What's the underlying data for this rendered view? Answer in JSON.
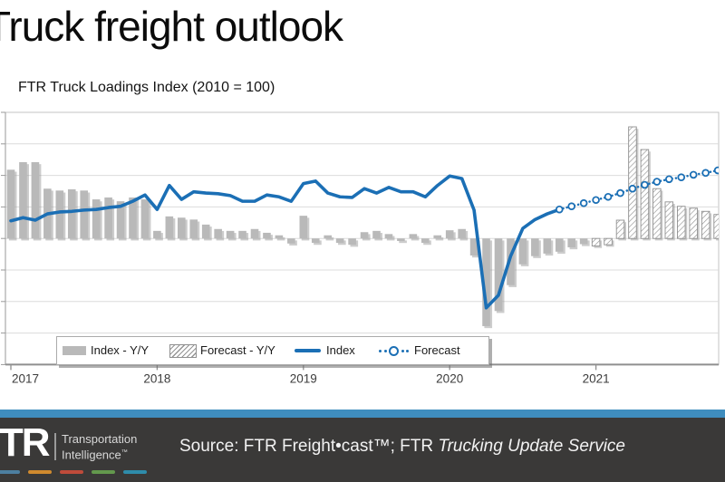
{
  "slide": {
    "title": "Truck freight outlook",
    "chart_subtitle": "FTR Truck Loadings Index (2010 = 100)"
  },
  "legend": {
    "items": [
      {
        "label": "Index - Y/Y",
        "swatch": "gray-bar"
      },
      {
        "label": "Forecast - Y/Y",
        "swatch": "hatched-bar"
      },
      {
        "label": "Index",
        "swatch": "solid-blue-line"
      },
      {
        "label": "Forecast",
        "swatch": "dotted-line-circle-marker"
      }
    ]
  },
  "footer": {
    "logo_text": "FTR",
    "logo_tagline_line1": "Transportation",
    "logo_tagline_line2": "Intelligence",
    "logo_trademark": "™",
    "source_prefix": "Source: FTR Freight•cast™; FTR ",
    "source_italic": "Trucking Update Service",
    "blue_bar_color": "#3f8dbe",
    "background_color": "#3a3938",
    "dash_colors": [
      "#4d7fa0",
      "#d08a2e",
      "#bf4b3a",
      "#63994d",
      "#2e8caa"
    ]
  },
  "chart_data": {
    "type": "bar",
    "title": "FTR Truck Loadings Index (2010 = 100)",
    "x_axis": {
      "tick_labels": [
        "2017",
        "2018",
        "2019",
        "2020",
        "2021"
      ],
      "frequency": "monthly",
      "start": "2017-01",
      "end": "2021-12"
    },
    "y_axis": {
      "tick_labels_visible": false,
      "gridline_count": 9,
      "estimated_units_per_gridline_band": 5
    },
    "colors": {
      "bar_gray": "#b9b9b9",
      "hatch_stroke": "#949494",
      "line_blue": "#1b6fb5",
      "gridline": "#dcdcdc",
      "plot_border": "#c3c3c3",
      "axis_line": "#8f8f8f"
    },
    "series": [
      {
        "name": "Index - Y/Y",
        "type": "bar",
        "style": "solid-gray",
        "unit": "percent y/y (estimated, 1 gridline = 5%)",
        "start_month": "2017-01",
        "start_index": 0,
        "values": [
          10.9,
          12.1,
          12.1,
          7.9,
          7.6,
          7.8,
          7.6,
          6.2,
          6.5,
          5.9,
          6.5,
          6.2,
          1.2,
          3.5,
          3.3,
          3.0,
          2.2,
          1.5,
          1.2,
          1.2,
          1.5,
          0.9,
          0.5,
          -0.8,
          3.6,
          -0.7,
          0.5,
          -0.7,
          -1.0,
          1.0,
          1.2,
          0.7,
          -0.4,
          0.7,
          -0.7,
          0.5,
          1.3,
          1.5,
          -2.7,
          -13.9,
          -11.5,
          -7.4,
          -4.1,
          -2.8,
          -2.4,
          -2.1,
          -1.4,
          -0.9
        ]
      },
      {
        "name": "Forecast - Y/Y",
        "type": "bar",
        "style": "hatched",
        "unit": "percent y/y (estimated, 1 gridline = 5%)",
        "start_month": "2021-01",
        "start_index": 48,
        "values": [
          -1.2,
          -1.0,
          2.9,
          17.7,
          14.1,
          7.9,
          5.8,
          5.1,
          4.8,
          4.3,
          3.8,
          3.6
        ]
      },
      {
        "name": "Index",
        "type": "line",
        "style": "solid",
        "unit": "index level, 2010 = 100 (estimated)",
        "start_month": "2017-01",
        "start_index": 0,
        "values": [
          102.8,
          103.3,
          102.9,
          103.9,
          104.2,
          104.3,
          104.5,
          104.6,
          104.9,
          105.1,
          105.9,
          106.9,
          104.6,
          108.4,
          106.2,
          107.4,
          107.2,
          107.1,
          106.8,
          105.9,
          105.9,
          106.9,
          106.6,
          105.9,
          108.7,
          109.1,
          107.2,
          106.6,
          106.5,
          107.9,
          107.2,
          108.1,
          107.4,
          107.4,
          106.6,
          108.4,
          109.9,
          109.5,
          104.5,
          89.0,
          91.0,
          97.2,
          101.6,
          103.0,
          103.9,
          104.6
        ]
      },
      {
        "name": "Forecast",
        "type": "line",
        "style": "dotted-with-circle-markers",
        "unit": "index level, 2010 = 100 (estimated)",
        "start_month": "2020-10",
        "start_index": 45,
        "values": [
          104.6,
          105.1,
          105.6,
          106.1,
          106.6,
          107.2,
          107.9,
          108.5,
          109.0,
          109.4,
          109.7,
          110.1,
          110.4,
          110.8,
          111.1
        ]
      }
    ]
  }
}
